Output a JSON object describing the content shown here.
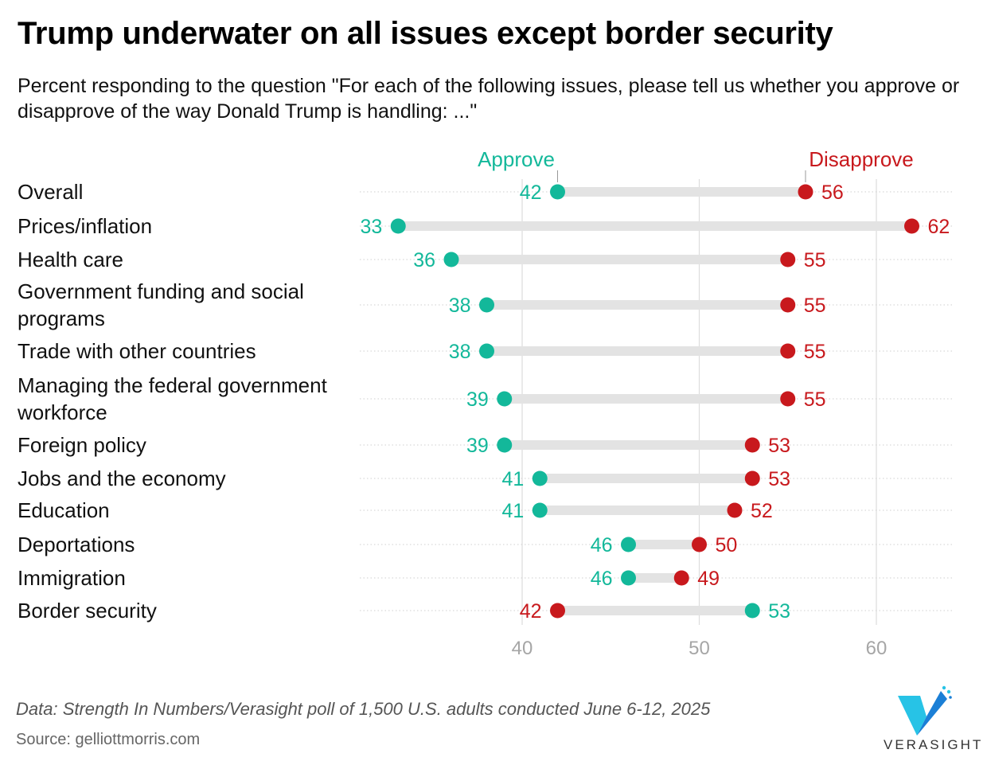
{
  "title": "Trump underwater on all issues except border security",
  "subtitle": "Percent responding to the question \"For each of the following issues, please tell us whether you approve or disapprove of the way Donald Trump is handling: ...\"",
  "footer": {
    "data_note": "Data: Strength In Numbers/Verasight poll of 1,500 U.S. adults conducted June 6-12, 2025",
    "source": "Source: gelliottmorris.com"
  },
  "brand": {
    "name": "VERASIGHT",
    "logo_icon": "verasight-v-logo-icon"
  },
  "colors": {
    "approve": "#13b89a",
    "disapprove": "#c8191d",
    "connector": "#e3e3e3",
    "grid": "#dcdcdc",
    "tick": "#a6a6a6"
  },
  "chart_data": {
    "type": "dumbbell",
    "series": [
      {
        "name": "Approve",
        "values": [
          42,
          33,
          36,
          38,
          38,
          39,
          39,
          41,
          41,
          46,
          46,
          53
        ]
      },
      {
        "name": "Disapprove",
        "values": [
          56,
          62,
          55,
          55,
          55,
          55,
          53,
          53,
          52,
          50,
          49,
          42
        ]
      }
    ],
    "categories": [
      "Overall",
      "Prices/inflation",
      "Health care",
      "Government funding and social programs",
      "Trade with other countries",
      "Managing the federal government workforce",
      "Foreign policy",
      "Jobs and the economy",
      "Education",
      "Deportations",
      "Immigration",
      "Border security"
    ],
    "category_lines": [
      [
        "Overall"
      ],
      [
        "Prices/inflation"
      ],
      [
        "Health care"
      ],
      [
        "Government funding and social",
        "programs"
      ],
      [
        "Trade with other countries"
      ],
      [
        "Managing the federal government",
        "workforce"
      ],
      [
        "Foreign policy"
      ],
      [
        "Jobs and the economy"
      ],
      [
        "Education"
      ],
      [
        "Deportations"
      ],
      [
        "Immigration"
      ],
      [
        "Border security"
      ]
    ],
    "x_ticks": [
      40,
      50,
      60
    ],
    "xlim": [
      31,
      64
    ],
    "legend_placement": "annotated above first row",
    "grid": "vertical"
  }
}
